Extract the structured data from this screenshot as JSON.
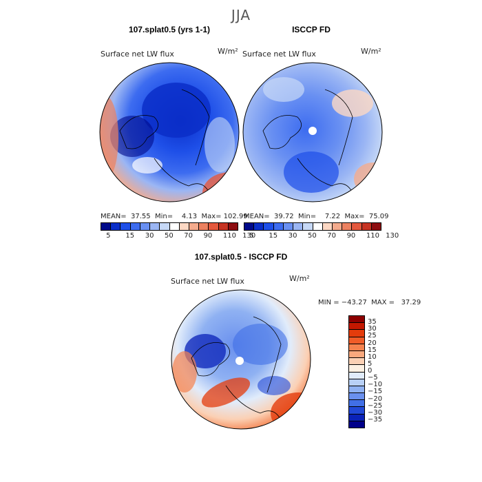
{
  "season_title": "JJA",
  "panels": [
    {
      "title": "107.splat0.5 (yrs 1-1)",
      "field_label": "Surface net LW flux",
      "units": "W/m²",
      "stats": "MEAN=  37.55  Min=    4.13  Max= 102.99"
    },
    {
      "title": "ISCCP FD",
      "field_label": "Surface net LW flux",
      "units": "W/m²",
      "stats": "MEAN=  39.72  Min=    7.22  Max=  75.09"
    },
    {
      "title": "107.splat0.5 - ISCCP FD",
      "field_label": "Surface net LW flux",
      "units": "W/m²",
      "stats": "MIN = −43.27  MAX =   37.29"
    }
  ],
  "top_colorbar": {
    "colors": [
      "#000a8a",
      "#0a2ec8",
      "#1e4fe8",
      "#3d6cf0",
      "#6990f2",
      "#9bb6f4",
      "#c7d9f7",
      "#ffffff",
      "#fcd8c4",
      "#f4ab8d",
      "#ec8160",
      "#e4583d",
      "#c63322",
      "#8d0d10"
    ],
    "tick_labels": [
      "5",
      "15",
      "30",
      "50",
      "70",
      "90",
      "110",
      "130"
    ]
  },
  "diff_colorbar": {
    "colors": [
      "#8d0000",
      "#c41800",
      "#e43c0c",
      "#f05c28",
      "#f5824e",
      "#f8a87d",
      "#fbd0b4",
      "#fdf0e2",
      "#e1ecfb",
      "#b8d0f6",
      "#8fb1f2",
      "#6a90ee",
      "#416fe6",
      "#2148d6",
      "#0a22b8",
      "#00008a"
    ],
    "tick_labels": [
      "35",
      "30",
      "25",
      "20",
      "15",
      "10",
      "5",
      "0",
      "−5",
      "−10",
      "−15",
      "−20",
      "−25",
      "−30",
      "−35"
    ]
  }
}
